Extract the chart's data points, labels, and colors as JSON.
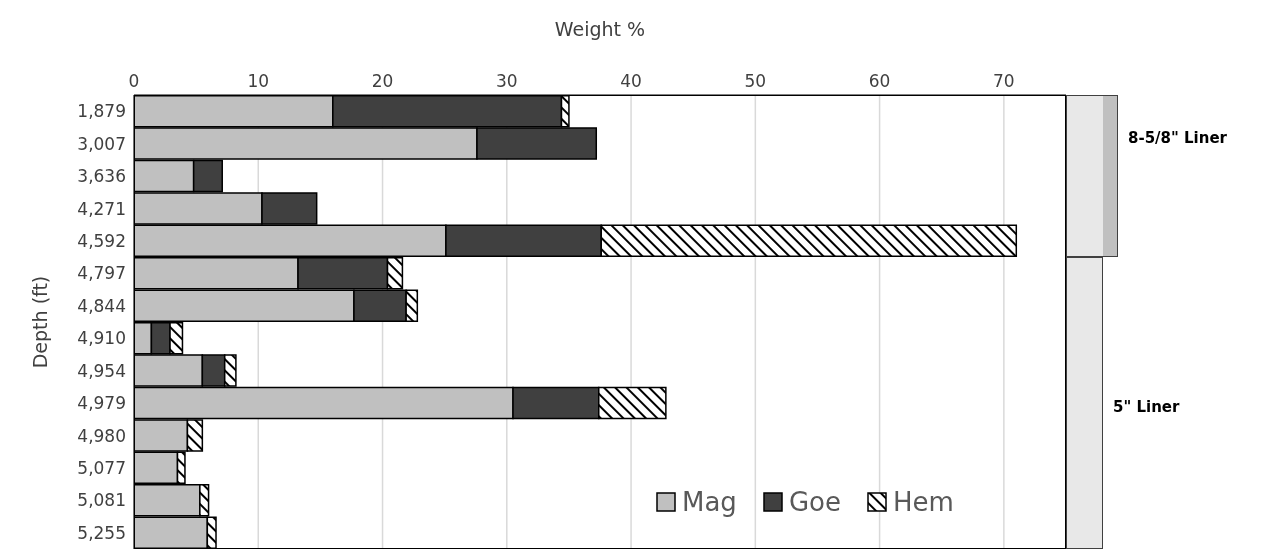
{
  "chart_data": {
    "type": "bar",
    "orientation": "horizontal",
    "stacked": true,
    "xlabel": "Weight %",
    "ylabel": "Depth (ft)",
    "categories": [
      "1,879",
      "3,007",
      "3,636",
      "4,271",
      "4,592",
      "4,797",
      "4,844",
      "4,910",
      "4,954",
      "4,979",
      "4,980",
      "5,077",
      "5,081",
      "5,255"
    ],
    "series": [
      {
        "name": "Mag",
        "color": "#c0c0c0",
        "values": [
          16.0,
          27.6,
          4.8,
          10.3,
          25.1,
          13.2,
          17.7,
          1.4,
          5.5,
          30.5,
          4.3,
          3.5,
          5.3,
          5.9
        ]
      },
      {
        "name": "Goe",
        "color": "#404040",
        "values": [
          18.4,
          9.6,
          2.3,
          4.4,
          12.5,
          7.2,
          4.2,
          1.5,
          1.8,
          6.9,
          0,
          0,
          0,
          0
        ]
      },
      {
        "name": "Hem",
        "color": "#000000",
        "values": [
          0.6,
          0,
          0,
          0,
          33.4,
          1.2,
          0.9,
          1.0,
          0.9,
          5.4,
          1.2,
          0.6,
          0.7,
          0.7
        ]
      }
    ],
    "xlim": [
      0,
      75
    ],
    "xticks": [
      0,
      10,
      20,
      30,
      40,
      50,
      60,
      70
    ],
    "grid": "x",
    "legend": "bottom right",
    "annotations": [
      "8-5/8\" Liner",
      "5\" Liner"
    ]
  }
}
